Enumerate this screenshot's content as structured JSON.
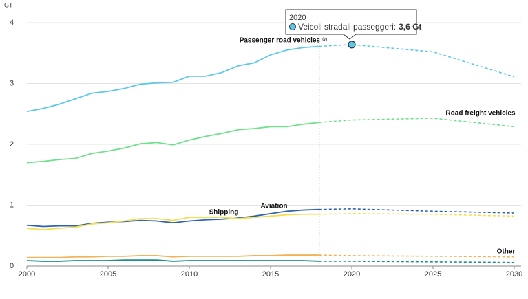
{
  "chart_data": {
    "type": "line",
    "y_label": "GT",
    "x": [
      2000,
      2001,
      2002,
      2003,
      2004,
      2005,
      2006,
      2007,
      2008,
      2009,
      2010,
      2011,
      2012,
      2013,
      2014,
      2015,
      2016,
      2017,
      2018,
      2020,
      2025,
      2030
    ],
    "xlim": [
      2000,
      2030
    ],
    "xticks": [
      2000,
      2005,
      2010,
      2015,
      2020,
      2025,
      2030
    ],
    "ylim": [
      0,
      4
    ],
    "yticks": [
      0,
      1,
      2,
      3,
      4
    ],
    "grid": true,
    "dashed_from": 2018,
    "projection_marker_label": "S",
    "series": [
      {
        "name": "Passenger road vehicles",
        "color": "#5bc8e8",
        "values": [
          2.54,
          2.59,
          2.66,
          2.75,
          2.84,
          2.87,
          2.92,
          2.99,
          3.01,
          3.02,
          3.12,
          3.12,
          3.18,
          3.29,
          3.34,
          3.47,
          3.55,
          3.59,
          3.61,
          3.64,
          3.52,
          3.11
        ]
      },
      {
        "name": "Road freight vehicles",
        "color": "#6fe08b",
        "values": [
          1.7,
          1.72,
          1.75,
          1.77,
          1.85,
          1.89,
          1.94,
          2.01,
          2.03,
          1.99,
          2.07,
          2.13,
          2.18,
          2.24,
          2.26,
          2.29,
          2.29,
          2.33,
          2.36,
          2.4,
          2.43,
          2.29
        ]
      },
      {
        "name": "Aviation",
        "color": "#2f62b3",
        "values": [
          0.67,
          0.65,
          0.66,
          0.66,
          0.7,
          0.72,
          0.73,
          0.75,
          0.74,
          0.71,
          0.74,
          0.76,
          0.77,
          0.79,
          0.82,
          0.86,
          0.9,
          0.92,
          0.93,
          0.94,
          0.9,
          0.87
        ]
      },
      {
        "name": "Shipping",
        "color": "#f2df4e",
        "values": [
          0.62,
          0.6,
          0.62,
          0.64,
          0.69,
          0.71,
          0.74,
          0.78,
          0.78,
          0.75,
          0.8,
          0.8,
          0.8,
          0.78,
          0.8,
          0.82,
          0.84,
          0.85,
          0.85,
          0.86,
          0.85,
          0.82
        ]
      },
      {
        "name": "Other",
        "color": "#f2b257",
        "values": [
          0.14,
          0.14,
          0.14,
          0.15,
          0.15,
          0.16,
          0.16,
          0.17,
          0.17,
          0.15,
          0.16,
          0.16,
          0.16,
          0.16,
          0.17,
          0.17,
          0.18,
          0.18,
          0.18,
          0.17,
          0.16,
          0.15
        ]
      },
      {
        "name": null,
        "color": "#1c8f86",
        "values": [
          0.09,
          0.08,
          0.08,
          0.09,
          0.09,
          0.09,
          0.1,
          0.1,
          0.1,
          0.08,
          0.09,
          0.09,
          0.09,
          0.09,
          0.09,
          0.09,
          0.09,
          0.09,
          0.08,
          0.08,
          0.07,
          0.06
        ]
      }
    ],
    "tooltip": {
      "x": 2020,
      "series_label": "Veicoli stradali passeggeri:",
      "value_label": "3,6 Gt"
    }
  }
}
